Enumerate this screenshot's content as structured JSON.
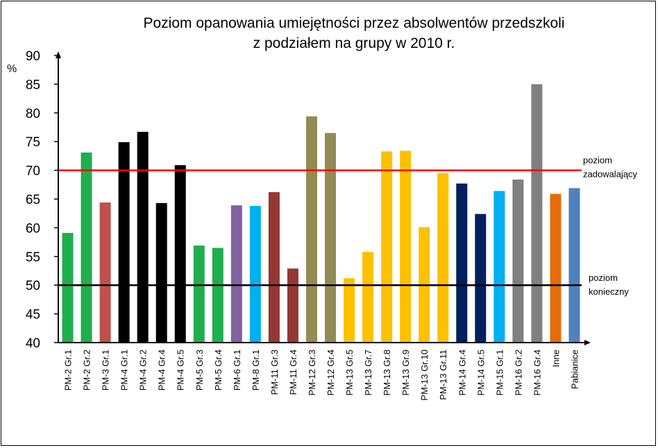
{
  "chart_data": {
    "type": "bar",
    "title": [
      "Poziom opanowania  umiejętności przez absolwentów przedszkoli",
      "z podziałem na grupy w 2010 r."
    ],
    "ylabel": "%",
    "xlabel": "",
    "ylim": [
      40,
      90
    ],
    "yticks": [
      40,
      45,
      50,
      55,
      60,
      65,
      70,
      75,
      80,
      85,
      90
    ],
    "categories": [
      "PM-2 Gr.1",
      "PM-2 Gr.2",
      "PM-3 Gr.1",
      "PM-4 Gr.1",
      "PM-4 Gr.2",
      "PM-4 Gr.4",
      "PM-4 Gr.5",
      "PM-5 Gr.3",
      "PM-5 Gr.4",
      "PM-6 Gr.1",
      "PM-8 Gr.1",
      "PM-11 Gr.3",
      "PM-11 Gr.4",
      "PM-12 Gr.3",
      "PM-12 Gr.4",
      "PM-13 Gr.5",
      "PM-13 Gr.7",
      "PM-13 Gr.8",
      "PM-13 Gr.9",
      "PM-13 Gr.10",
      "PM-13 Gr.11",
      "PM-14 Gr.4",
      "PM-14 Gr.5",
      "PM-15 Gr.1",
      "PM-16 Gr.2",
      "PM-16 Gr.4",
      "Inne",
      "Pabianice"
    ],
    "values": [
      59.1,
      73.1,
      64.4,
      74.9,
      76.7,
      64.3,
      70.9,
      56.9,
      56.5,
      63.9,
      63.8,
      66.2,
      52.9,
      79.4,
      76.5,
      51.2,
      55.8,
      73.3,
      73.4,
      60.1,
      69.5,
      67.7,
      62.4,
      66.4,
      68.4,
      85.0,
      65.9,
      66.9
    ],
    "colors": [
      "#1fae4e",
      "#1fae4e",
      "#c0504d",
      "#000000",
      "#000000",
      "#000000",
      "#000000",
      "#1fae4e",
      "#1fae4e",
      "#8064a2",
      "#00b0f0",
      "#953735",
      "#953735",
      "#948a54",
      "#948a54",
      "#ffc000",
      "#ffc000",
      "#ffc000",
      "#ffc000",
      "#ffc000",
      "#ffc000",
      "#002060",
      "#002060",
      "#00b0f0",
      "#808080",
      "#808080",
      "#e46c0a",
      "#4f81bd"
    ],
    "reference_lines": [
      {
        "value": 70,
        "color": "#ff0000",
        "label": [
          "poziom",
          "zadowalający"
        ]
      },
      {
        "value": 50,
        "color": "#000000",
        "label": [
          "poziom",
          "konieczny"
        ]
      }
    ],
    "grid": false,
    "legend": "none"
  }
}
